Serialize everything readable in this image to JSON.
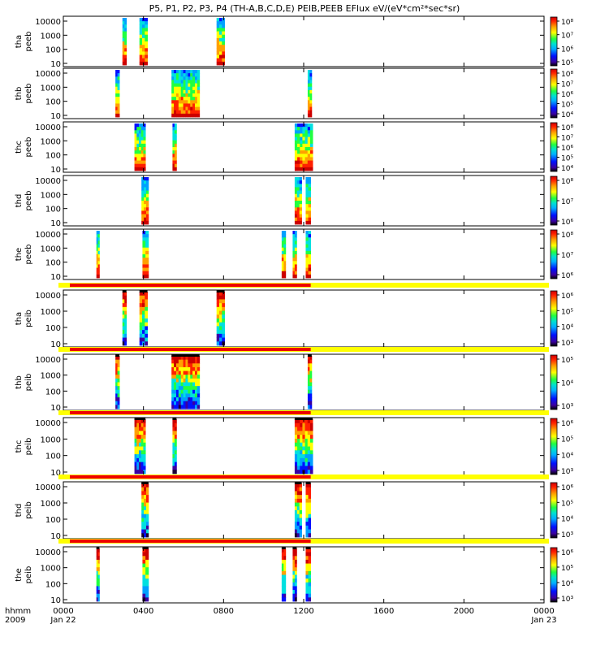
{
  "title": "P5, P1, P2, P3, P4 (TH-A,B,C,D,E) PEIB,PEEB EFlux eV/(eV*cm²*sec*sr)",
  "chart_data": {
    "type": "heatmap",
    "time_label": "hhmm",
    "year_label": "2009",
    "x_ticks": [
      {
        "hours": 0,
        "label": "0000",
        "date": "Jan 22"
      },
      {
        "hours": 4,
        "label": "0400",
        "date": ""
      },
      {
        "hours": 8,
        "label": "0800",
        "date": ""
      },
      {
        "hours": 12,
        "label": "1200",
        "date": ""
      },
      {
        "hours": 16,
        "label": "1600",
        "date": ""
      },
      {
        "hours": 20,
        "label": "2000",
        "date": ""
      },
      {
        "hours": 24,
        "label": "0000",
        "date": "Jan 23"
      }
    ],
    "y_ticks_electron": [
      "10000",
      "1000",
      "100",
      "10"
    ],
    "y_ticks_electron_tha": [
      "10000",
      "1000",
      "100",
      "10"
    ],
    "y_ticks_ion": [
      "10000",
      "1000",
      "100",
      "10"
    ],
    "panels": [
      {
        "probe": "tha",
        "product": "peeb",
        "cbar": [
          "10⁸",
          "10⁷",
          "10⁶",
          "10⁵"
        ],
        "cbar_exp": [
          8,
          7,
          6,
          5
        ],
        "intervals": [
          [
            2.95,
            3.15
          ],
          [
            3.8,
            4.2
          ],
          [
            7.65,
            8.05
          ]
        ],
        "has_bar": false
      },
      {
        "probe": "thb",
        "product": "peeb",
        "cbar": [
          "10⁸",
          "10⁷",
          "10⁶",
          "10⁵",
          "10⁴"
        ],
        "cbar_exp": [
          8,
          7,
          6,
          5,
          4
        ],
        "intervals": [
          [
            2.6,
            2.8
          ],
          [
            5.4,
            6.8
          ],
          [
            12.2,
            12.4
          ]
        ],
        "has_bar": false
      },
      {
        "probe": "thc",
        "product": "peeb",
        "cbar": [
          "10⁸",
          "10⁷",
          "10⁶",
          "10⁵",
          "10⁴"
        ],
        "cbar_exp": [
          8,
          7,
          6,
          5,
          4
        ],
        "intervals": [
          [
            3.55,
            4.1
          ],
          [
            5.45,
            5.65
          ],
          [
            11.55,
            12.45
          ]
        ],
        "has_bar": false
      },
      {
        "probe": "thd",
        "product": "peeb",
        "cbar": [
          "10⁸",
          "10⁷",
          "10⁶"
        ],
        "cbar_exp": [
          8,
          7,
          6
        ],
        "intervals": [
          [
            3.9,
            4.25
          ],
          [
            11.55,
            11.9
          ],
          [
            12.1,
            12.35
          ]
        ],
        "has_bar": false
      },
      {
        "probe": "the",
        "product": "peeb",
        "cbar": [
          "10⁸",
          "10⁷",
          "10⁶"
        ],
        "cbar_exp": [
          8,
          7,
          6
        ],
        "intervals": [
          [
            1.65,
            1.8
          ],
          [
            3.95,
            4.25
          ],
          [
            10.9,
            11.1
          ],
          [
            11.45,
            11.65
          ],
          [
            12.1,
            12.35
          ]
        ],
        "has_bar": false
      },
      {
        "probe": "tha",
        "product": "peib",
        "cbar": [
          "10⁶",
          "10⁵",
          "10⁴",
          "10³"
        ],
        "cbar_exp": [
          6,
          5,
          4,
          3
        ],
        "intervals": [
          [
            2.95,
            3.15
          ],
          [
            3.8,
            4.2
          ],
          [
            7.65,
            8.05
          ]
        ],
        "has_bar": true
      },
      {
        "probe": "thb",
        "product": "peib",
        "cbar": [
          "10⁵",
          "10⁴",
          "10³"
        ],
        "cbar_exp": [
          5,
          4,
          3
        ],
        "intervals": [
          [
            2.6,
            2.8
          ],
          [
            5.4,
            6.8
          ],
          [
            12.2,
            12.4
          ]
        ],
        "has_bar": true
      },
      {
        "probe": "thc",
        "product": "peib",
        "cbar": [
          "10⁶",
          "10⁵",
          "10⁴",
          "10³"
        ],
        "cbar_exp": [
          6,
          5,
          4,
          3
        ],
        "intervals": [
          [
            3.55,
            4.1
          ],
          [
            5.45,
            5.65
          ],
          [
            11.55,
            12.45
          ]
        ],
        "has_bar": true
      },
      {
        "probe": "thd",
        "product": "peib",
        "cbar": [
          "10⁶",
          "10⁵",
          "10⁴",
          "10³"
        ],
        "cbar_exp": [
          6,
          5,
          4,
          3
        ],
        "intervals": [
          [
            3.9,
            4.25
          ],
          [
            11.55,
            11.9
          ],
          [
            12.1,
            12.35
          ]
        ],
        "has_bar": true
      },
      {
        "probe": "the",
        "product": "peib",
        "cbar": [
          "10⁶",
          "10⁵",
          "10⁴",
          "10³"
        ],
        "cbar_exp": [
          6,
          5,
          4,
          3
        ],
        "intervals": [
          [
            1.65,
            1.8
          ],
          [
            3.95,
            4.25
          ],
          [
            10.9,
            11.1
          ],
          [
            11.45,
            11.65
          ],
          [
            12.1,
            12.35
          ]
        ],
        "has_bar": true
      }
    ],
    "status_bar": {
      "red_end_hours": 12.35,
      "red_color": "#ee0000",
      "yellow_color": "#ffff00"
    },
    "colors": {
      "scale": [
        "#1a0033",
        "#3a00a0",
        "#0010ff",
        "#00a0ff",
        "#00e0e0",
        "#20ff40",
        "#ffff00",
        "#ffa000",
        "#ff2000",
        "#cc0000"
      ]
    }
  }
}
